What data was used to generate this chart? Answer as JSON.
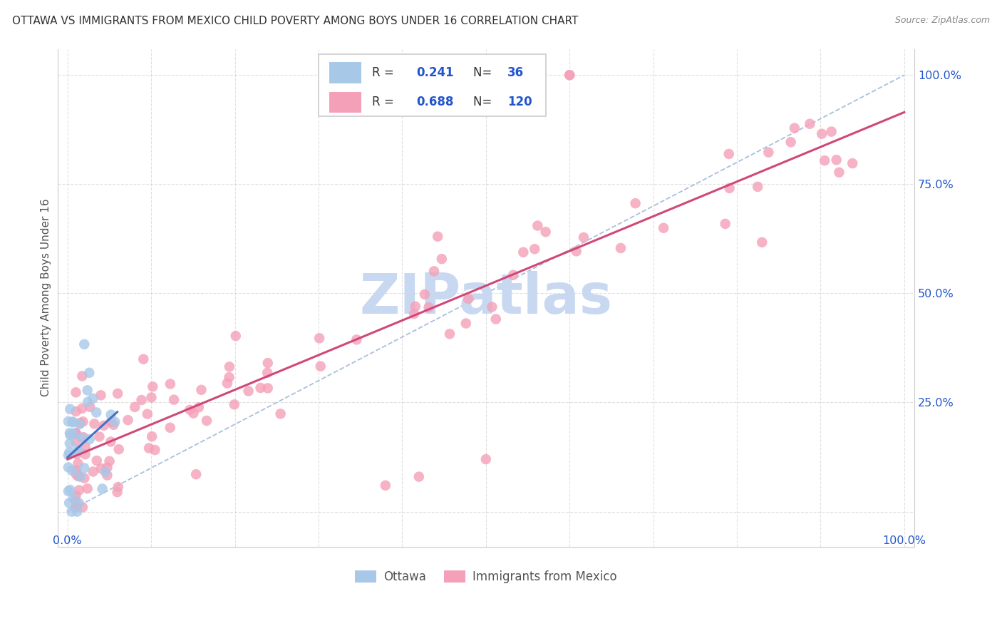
{
  "title": "OTTAWA VS IMMIGRANTS FROM MEXICO CHILD POVERTY AMONG BOYS UNDER 16 CORRELATION CHART",
  "source": "Source: ZipAtlas.com",
  "ylabel": "Child Poverty Among Boys Under 16",
  "ottawa_R": 0.241,
  "ottawa_N": 36,
  "mexico_R": 0.688,
  "mexico_N": 120,
  "ottawa_color": "#a8c8e8",
  "ottawa_line_color": "#4472c4",
  "mexico_color": "#f4a0b8",
  "mexico_line_color": "#d04878",
  "diagonal_color": "#a0b8d8",
  "watermark": "ZIPatlas",
  "watermark_color": "#c8d8f0",
  "background_color": "#ffffff",
  "grid_color": "#cccccc",
  "legend_text_color": "#333333",
  "legend_num_color": "#2255cc",
  "title_color": "#333333",
  "source_color": "#888888",
  "axis_label_color": "#2255cc",
  "ylabel_color": "#555555"
}
